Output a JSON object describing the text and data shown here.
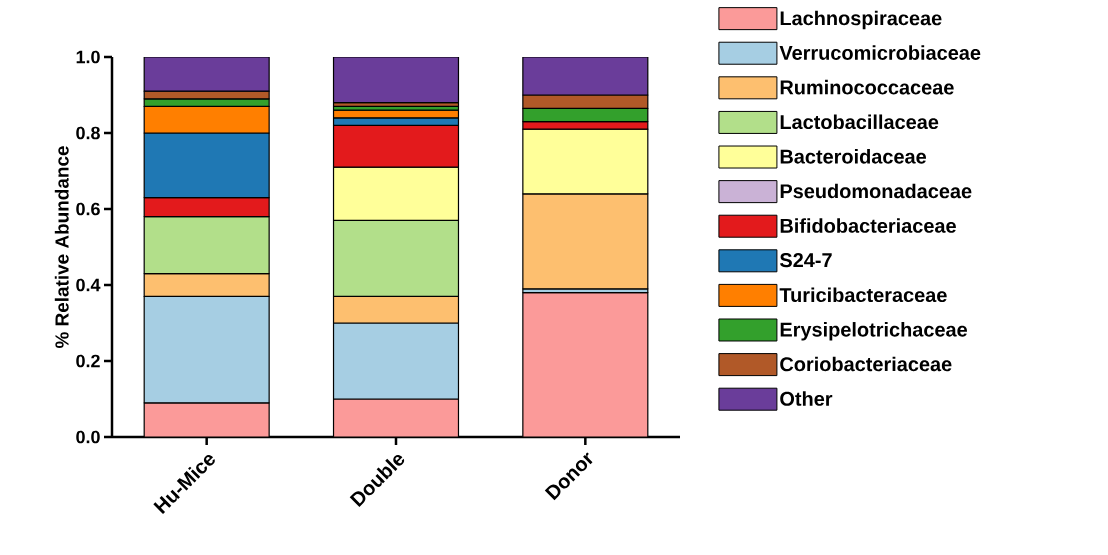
{
  "chart_data": {
    "type": "bar",
    "stacked": true,
    "ylabel": "% Relative Abundance",
    "categories": [
      "Hu-Mice",
      "Double",
      "Donor"
    ],
    "ylim": [
      0,
      1
    ],
    "yticks": [
      {
        "value": 0,
        "label": "0.0"
      },
      {
        "value": 0.2,
        "label": "0.2"
      },
      {
        "value": 0.4,
        "label": "0.4"
      },
      {
        "value": 0.6,
        "label": "0.6"
      },
      {
        "value": 0.8,
        "label": "0.8"
      },
      {
        "value": 1,
        "label": "1.0"
      }
    ],
    "legend": "right",
    "grid": false,
    "series": [
      {
        "name": "Lachnospiraceae",
        "color": "#fb9a99",
        "values": [
          0.09,
          0.1,
          0.38
        ]
      },
      {
        "name": "Verrucomicrobiaceae",
        "color": "#a6cee3",
        "values": [
          0.28,
          0.2,
          0.01
        ]
      },
      {
        "name": "Ruminococcaceae",
        "color": "#fdbf6f",
        "values": [
          0.06,
          0.07,
          0.25
        ]
      },
      {
        "name": "Lactobacillaceae",
        "color": "#b2df8a",
        "values": [
          0.15,
          0.2,
          null
        ]
      },
      {
        "name": "Bacteroidaceae",
        "color": "#ffff99",
        "values": [
          null,
          0.14,
          0.17
        ]
      },
      {
        "name": "Pseudomonadaceae",
        "color": "#cab2d6",
        "values": [
          null,
          null,
          null
        ]
      },
      {
        "name": "Bifidobacteriaceae",
        "color": "#e31a1c",
        "values": [
          0.05,
          0.11,
          0.02
        ]
      },
      {
        "name": "S24-7",
        "color": "#1f78b4",
        "values": [
          0.17,
          0.02,
          null
        ]
      },
      {
        "name": "Turicibacteraceae",
        "color": "#ff7f00",
        "values": [
          0.07,
          0.02,
          null
        ]
      },
      {
        "name": "Erysipelotrichaceae",
        "color": "#33a02c",
        "values": [
          0.02,
          0.01,
          0.035
        ]
      },
      {
        "name": "Coriobacteriaceae",
        "color": "#b15928",
        "values": [
          0.02,
          0.01,
          0.035
        ]
      },
      {
        "name": "Other",
        "color": "#6a3d9a",
        "values": [
          0.09,
          0.12,
          0.1
        ]
      }
    ]
  }
}
